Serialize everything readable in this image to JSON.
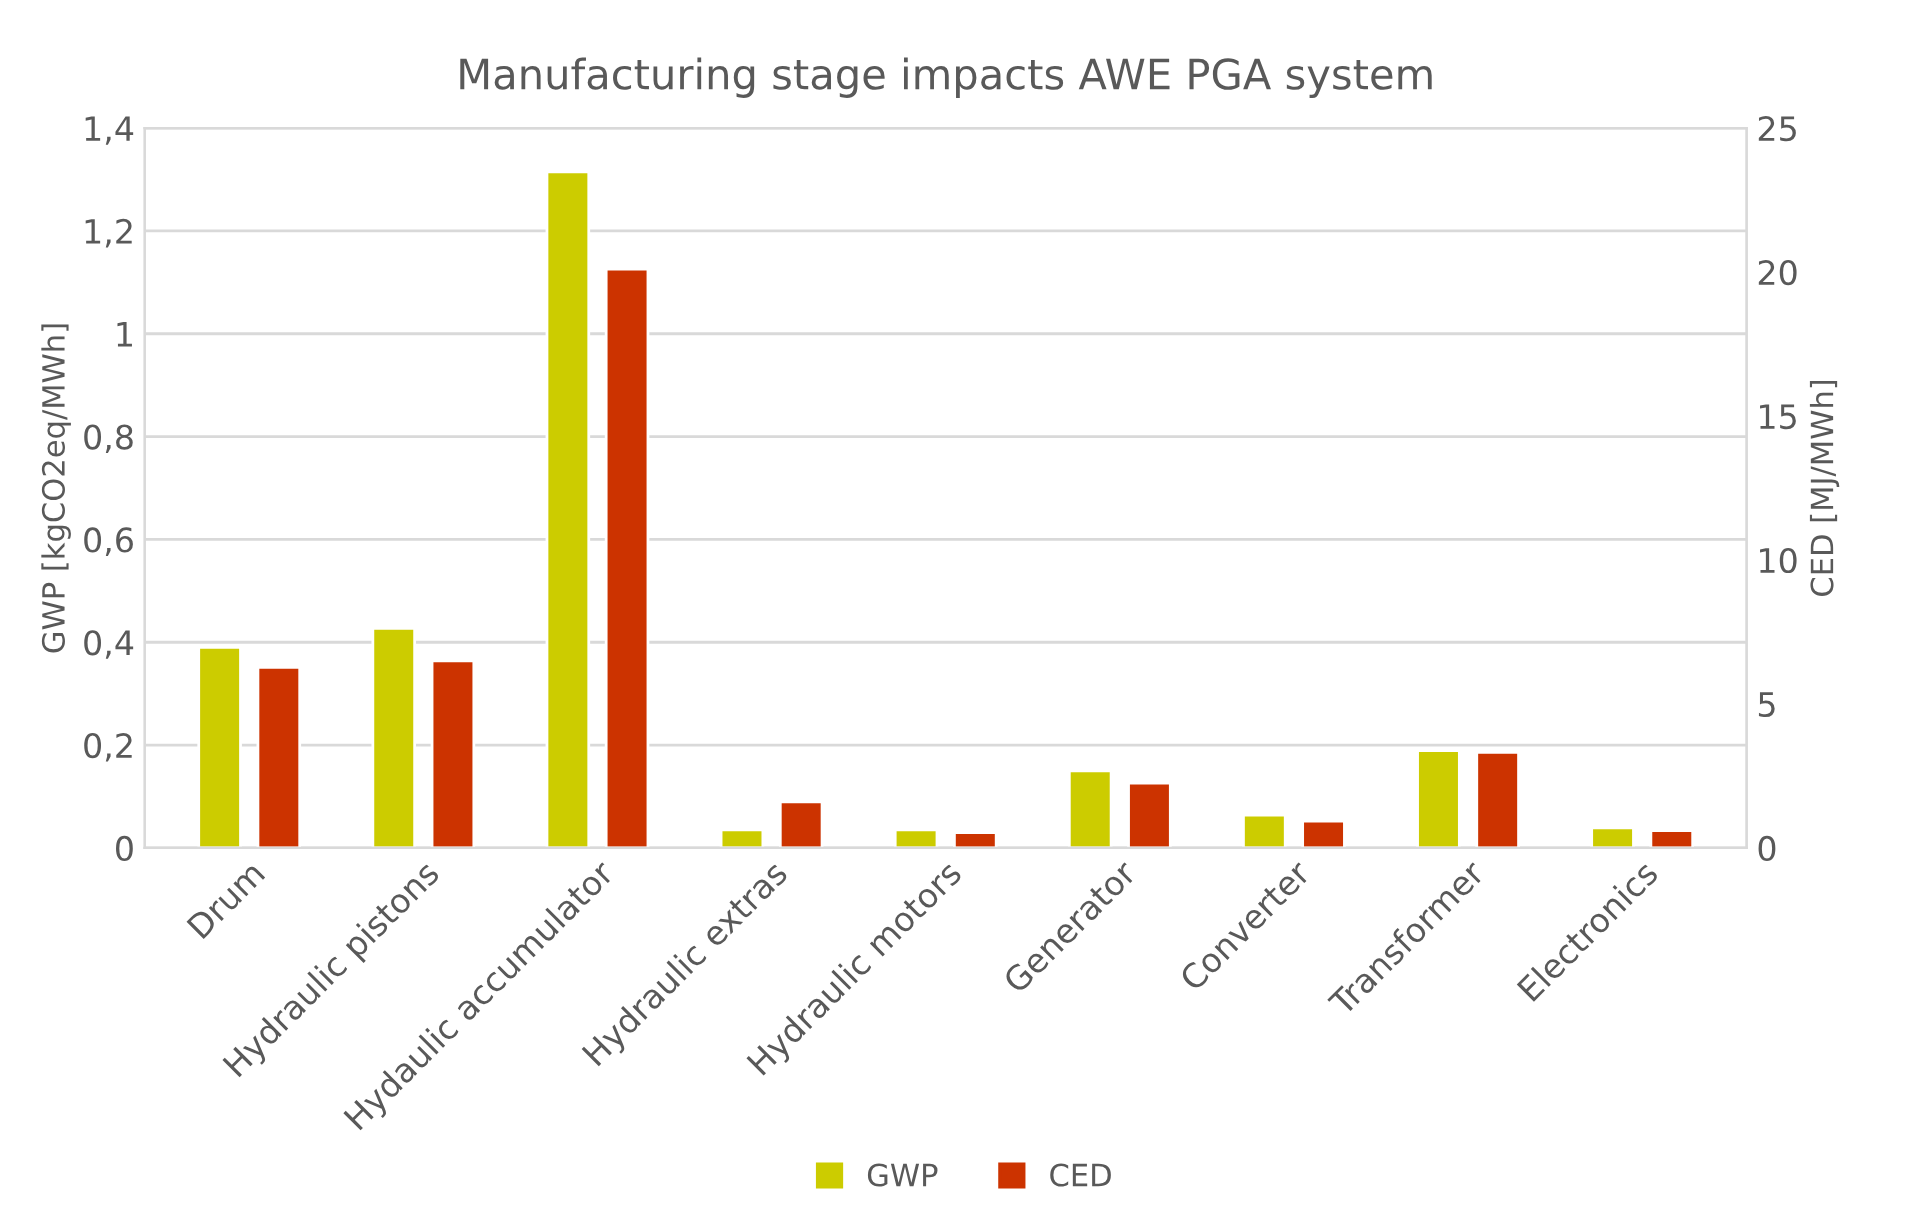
{
  "chart_data": {
    "type": "bar",
    "title": "Manufacturing stage impacts AWE PGA system",
    "ylabel": "GWP [kgCO2eq/MWh]",
    "y2label": "CED [MJ/MWh]",
    "categories": [
      "Drum",
      "Hydraulic pistons",
      "Hydaulic accumulator",
      "Hydraulic extras",
      "Hydraulic motors",
      "Generator",
      "Converter",
      "Transformer",
      "Electronics"
    ],
    "series": [
      {
        "name": "GWP",
        "color": "#cccc00",
        "values": [
          0.39,
          0.427,
          1.315,
          0.035,
          0.035,
          0.15,
          0.064,
          0.189,
          0.039
        ]
      },
      {
        "name": "CED",
        "color": "#cc3300",
        "axis": "y2",
        "values": [
          6.27,
          6.5,
          20.1,
          1.6,
          0.53,
          2.25,
          0.93,
          3.32,
          0.6
        ]
      }
    ],
    "ylim": [
      0,
      1.4
    ],
    "yticks": [
      0,
      {
        "value": 0.2,
        "label": "0,2"
      },
      {
        "value": 0.4,
        "label": "0,4"
      },
      {
        "value": 0.6,
        "label": "0,6"
      },
      {
        "value": 0.8,
        "label": "0,8"
      },
      1,
      {
        "value": 1.2,
        "label": "1,2"
      },
      {
        "value": 1.4,
        "label": "1,4"
      }
    ],
    "y2lim": [
      0,
      25
    ],
    "y2ticks": [
      0,
      5,
      10,
      15,
      20,
      25
    ],
    "grid": "y",
    "legend": "bottom"
  }
}
